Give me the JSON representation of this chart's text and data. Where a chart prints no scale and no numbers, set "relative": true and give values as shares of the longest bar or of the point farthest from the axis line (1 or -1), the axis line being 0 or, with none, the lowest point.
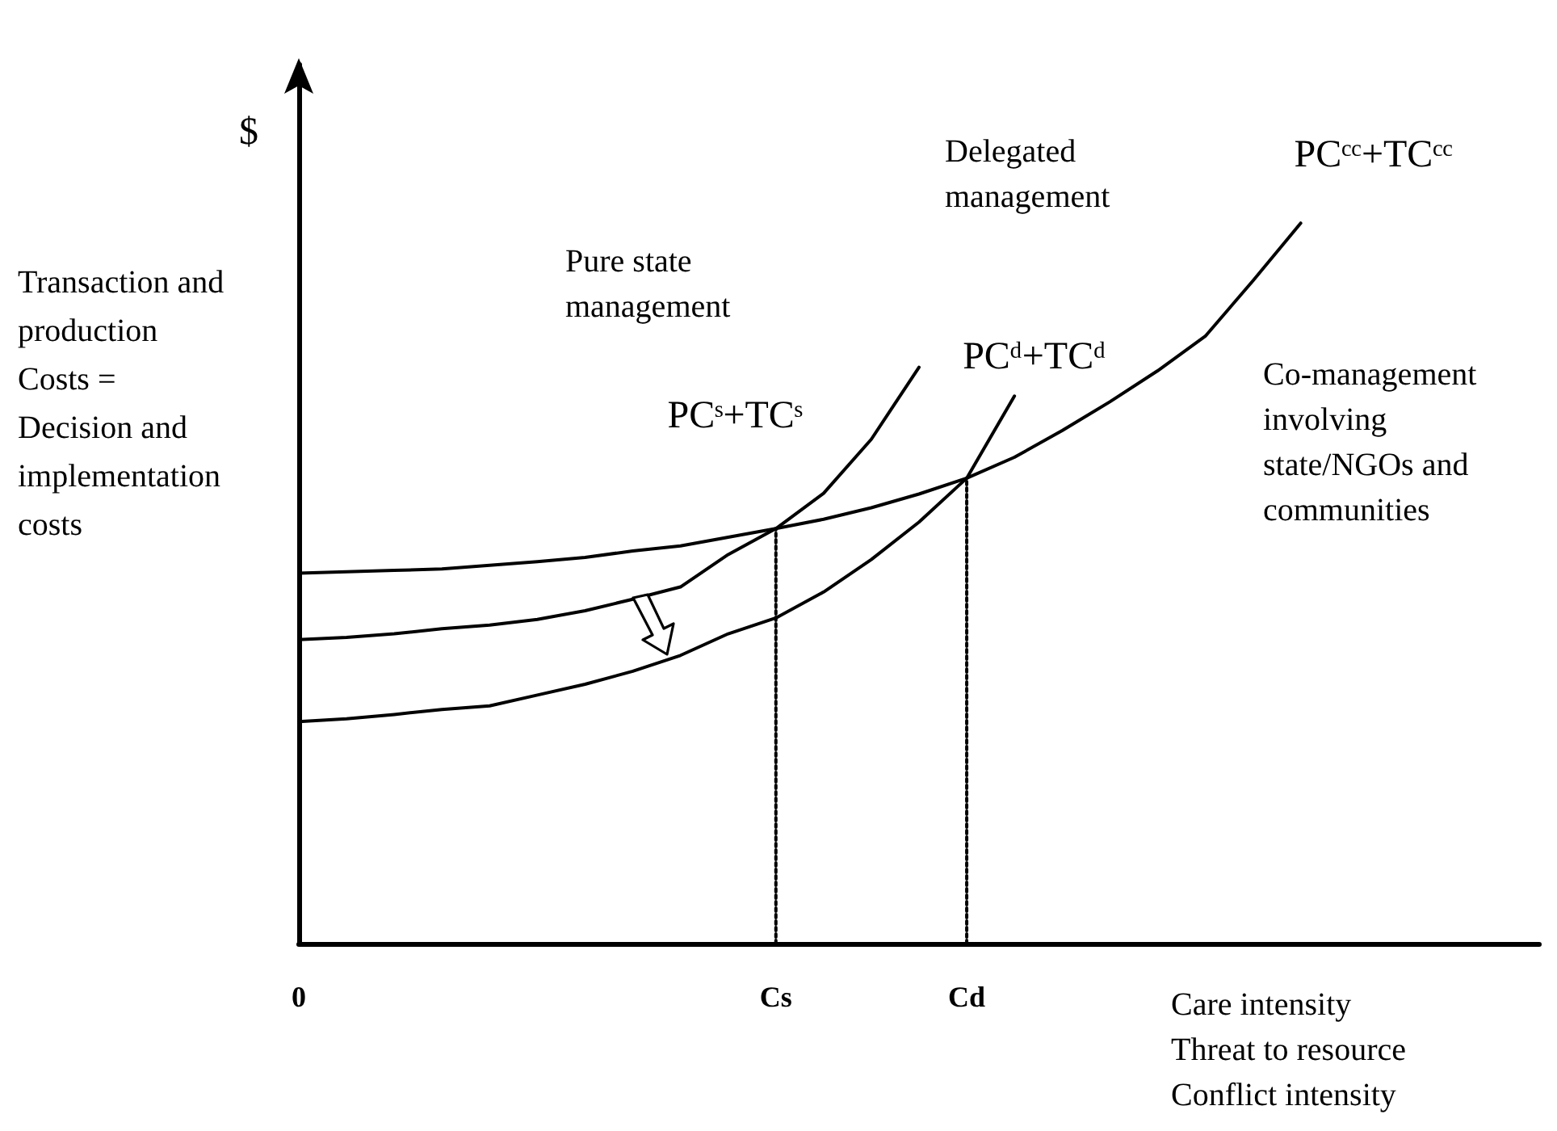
{
  "chart_data": {
    "type": "line",
    "relative": true,
    "ylabel": "$",
    "xlabel": "Care intensity\nThreat to resource\nConflict intensity",
    "categories": [
      "0",
      null,
      null,
      null,
      null,
      null,
      null,
      null,
      null,
      null,
      "Cs",
      null,
      null,
      null,
      "Cd",
      null,
      null,
      null,
      null,
      null,
      null,
      null,
      null,
      null,
      null,
      null,
      null
    ],
    "tick_labels": "x",
    "grid": false,
    "legend": false,
    "marker": "none",
    "series": [
      {
        "name": "PCᶜᶜ+TCᶜᶜ",
        "color": "#000000",
        "values": [
          0.514,
          0.516,
          0.518,
          0.52,
          0.525,
          0.53,
          0.536,
          0.545,
          0.552,
          0.564,
          0.576,
          0.589,
          0.605,
          0.624,
          0.646,
          0.675,
          0.712,
          0.752,
          0.795,
          0.843,
          0.92,
          1,
          null,
          null,
          null,
          null,
          null
        ]
      },
      {
        "name": "PCˢ+TCˢ",
        "color": "#000000",
        "values": [
          0.422,
          0.425,
          0.43,
          0.437,
          0.442,
          0.45,
          0.462,
          0.478,
          0.495,
          0.54,
          0.576,
          0.625,
          0.7,
          0.8,
          null,
          null,
          null,
          null,
          null,
          null,
          null,
          null,
          null,
          null,
          null,
          null,
          null
        ]
      },
      {
        "name": "PCᵈ+TCᵈ",
        "color": "#000000",
        "values": [
          0.308,
          0.312,
          0.318,
          0.325,
          0.33,
          0.345,
          0.36,
          0.378,
          0.4,
          0.43,
          0.452,
          0.488,
          0.533,
          0.585,
          0.646,
          0.76,
          null,
          null,
          null,
          null,
          null,
          null,
          null,
          null,
          null,
          null,
          null
        ]
      },
      {
        "color": "#000000",
        "line_style": "dotted",
        "x": [
          "Cs",
          "Cs"
        ],
        "values": [
          0,
          0.576
        ]
      },
      {
        "color": "#000000",
        "line_style": "dotted",
        "x": [
          "Cd",
          "Cd"
        ],
        "values": [
          0,
          0.646
        ]
      }
    ],
    "annotations": [
      "Transaction and\nproduction\nCosts =\nDecision and\nimplementation\ncosts",
      "Pure state\nmanagement",
      "Delegated\nmanagement",
      "Co-management\ninvolving\nstate/NGOs and\ncommunities"
    ]
  }
}
